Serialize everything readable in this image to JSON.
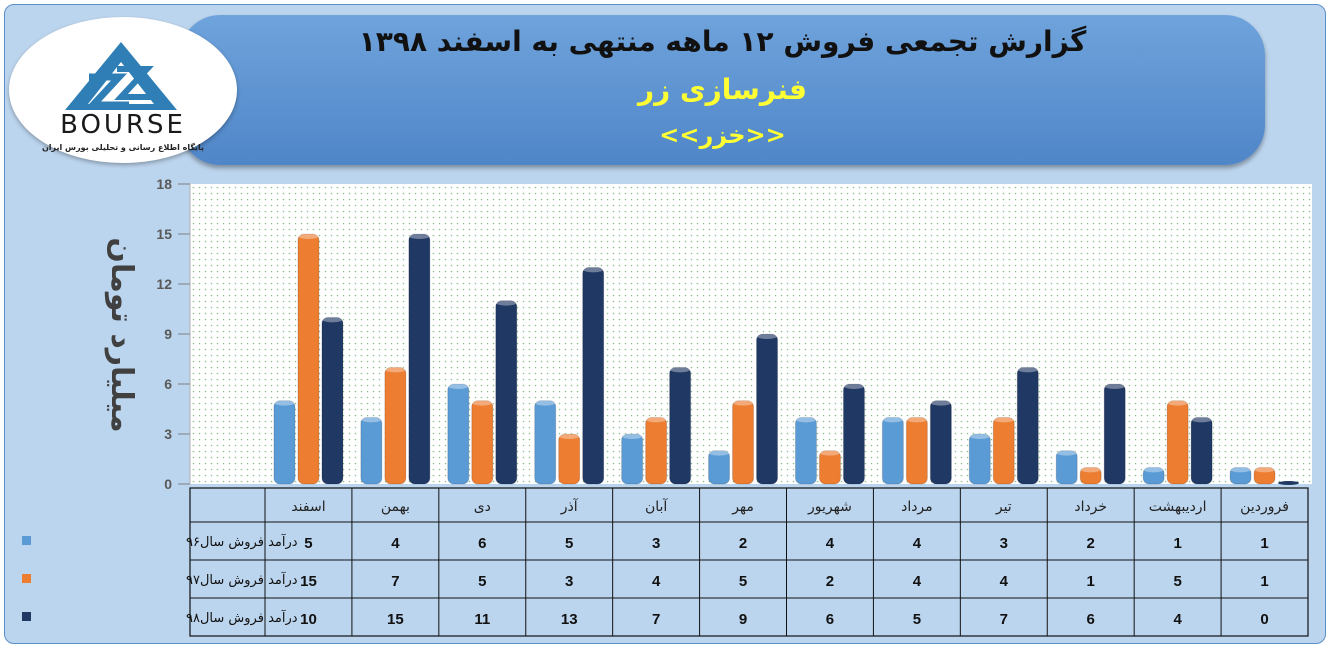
{
  "header": {
    "title": "گزارش تجمعی فروش  ۱۲ ماهه منتهی به اسفند ۱۳۹۸",
    "company": "فنرسازی زر",
    "symbol": "<<خزر>>"
  },
  "logo": {
    "word": "BOURSE",
    "tagline": "پایگاه اطلاع رسانی و تحلیلی بورس ایران"
  },
  "colors": {
    "s96": "#5b9bd5",
    "s97": "#ed7d31",
    "s98": "#1f3864"
  },
  "chart_data": {
    "type": "bar",
    "ylabel": "میلیارد تومان",
    "ylim": [
      0,
      18
    ],
    "yticks": [
      0,
      3,
      6,
      9,
      12,
      15,
      18
    ],
    "grid": false,
    "legend": "data-table",
    "categories": [
      "فروردین",
      "اردیبهشت",
      "خرداد",
      "تیر",
      "مرداد",
      "شهریور",
      "مهر",
      "آبان",
      "آذر",
      "دی",
      "بهمن",
      "اسفند"
    ],
    "series": [
      {
        "name": "درآمد فروش سال۹۶",
        "values": [
          1,
          1,
          2,
          3,
          4,
          4,
          2,
          3,
          5,
          6,
          4,
          5
        ]
      },
      {
        "name": "درآمد فروش سال۹۷",
        "values": [
          1,
          5,
          1,
          4,
          4,
          2,
          5,
          4,
          3,
          5,
          7,
          15
        ]
      },
      {
        "name": "درآمد فروش سال۹۸",
        "values": [
          0,
          4,
          6,
          7,
          5,
          6,
          9,
          7,
          13,
          11,
          15,
          10
        ]
      }
    ]
  }
}
